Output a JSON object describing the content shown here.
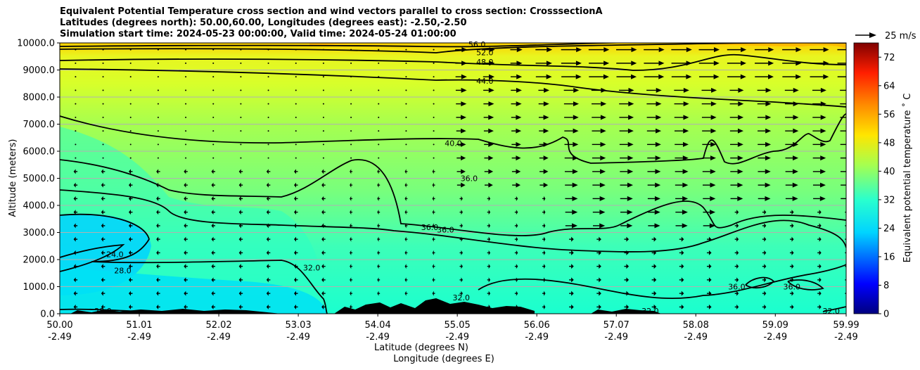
{
  "title": {
    "line1": "Equivalent Potential Temperature cross section and wind vectors parallel to cross section: CrosssectionA",
    "line2": "Latitudes (degrees north): 50.00,60.00, Longitudes (degrees east): -2.50,-2.50",
    "line3": "Simulation start time: 2024-05-23 00:00:00, Valid time: 2024-05-24 01:00:00"
  },
  "chart_data": {
    "type": "heatmap",
    "title": "Equivalent Potential Temperature cross section and wind vectors parallel to cross section: CrosssectionA",
    "ylabel": "Altitude (meters)",
    "xlabel_lat": "Latitude (degrees N)",
    "xlabel_lon": "Longitude (degrees E)",
    "ylim": [
      0,
      10000
    ],
    "xlim": [
      50.0,
      59.99
    ],
    "y_ticks": [
      "0.0",
      "1000.0",
      "2000.0",
      "3000.0",
      "4000.0",
      "5000.0",
      "6000.0",
      "7000.0",
      "8000.0",
      "9000.0",
      "10000.0"
    ],
    "y_tick_values": [
      0,
      1000,
      2000,
      3000,
      4000,
      5000,
      6000,
      7000,
      8000,
      9000,
      10000
    ],
    "x_tick_values": [
      50.0,
      51.01,
      52.02,
      53.03,
      54.04,
      55.05,
      56.06,
      57.07,
      58.08,
      59.09,
      59.99
    ],
    "x_ticks_lat": [
      "50.00",
      "51.01",
      "52.02",
      "53.03",
      "54.04",
      "55.05",
      "56.06",
      "57.07",
      "58.08",
      "59.09",
      "59.99"
    ],
    "x_ticks_lon": [
      "-2.49",
      "-2.49",
      "-2.49",
      "-2.49",
      "-2.49",
      "-2.49",
      "-2.49",
      "-2.49",
      "-2.49",
      "-2.49",
      "-2.49"
    ],
    "grid": "horizontal",
    "colorbar": {
      "label": "Equivalent potential temperature ˚ C",
      "min": 0,
      "max": 76,
      "ticks": [
        "0",
        "8",
        "16",
        "24",
        "32",
        "40",
        "48",
        "56",
        "64",
        "72"
      ],
      "tick_values": [
        0,
        8,
        16,
        24,
        32,
        40,
        48,
        56,
        64,
        72
      ]
    },
    "quiver_key": "25 m/s",
    "contour_labels": [
      {
        "text": "56.0",
        "lat": 55.3,
        "alt": 9950
      },
      {
        "text": "52.0",
        "lat": 55.4,
        "alt": 9650
      },
      {
        "text": "48.0",
        "lat": 55.4,
        "alt": 9300
      },
      {
        "text": "44.0",
        "lat": 55.4,
        "alt": 8600
      },
      {
        "text": "40.0",
        "lat": 55.0,
        "alt": 6300
      },
      {
        "text": "36.0",
        "lat": 55.2,
        "alt": 5000
      },
      {
        "text": "36.0",
        "lat": 54.7,
        "alt": 3200
      },
      {
        "text": "36.0",
        "lat": 54.9,
        "alt": 3100
      },
      {
        "text": "28.0",
        "lat": 50.8,
        "alt": 1600
      },
      {
        "text": "24.0",
        "lat": 50.7,
        "alt": 2200
      },
      {
        "text": "32.0",
        "lat": 53.2,
        "alt": 1700
      },
      {
        "text": "32.0",
        "lat": 55.1,
        "alt": 600
      },
      {
        "text": "28.0",
        "lat": 50.55,
        "alt": 100
      },
      {
        "text": "32.0",
        "lat": 57.5,
        "alt": 100
      },
      {
        "text": "36.0",
        "lat": 58.6,
        "alt": 1000
      },
      {
        "text": "36.0",
        "lat": 59.3,
        "alt": 1000
      },
      {
        "text": "32.0",
        "lat": 59.8,
        "alt": 100
      }
    ]
  }
}
